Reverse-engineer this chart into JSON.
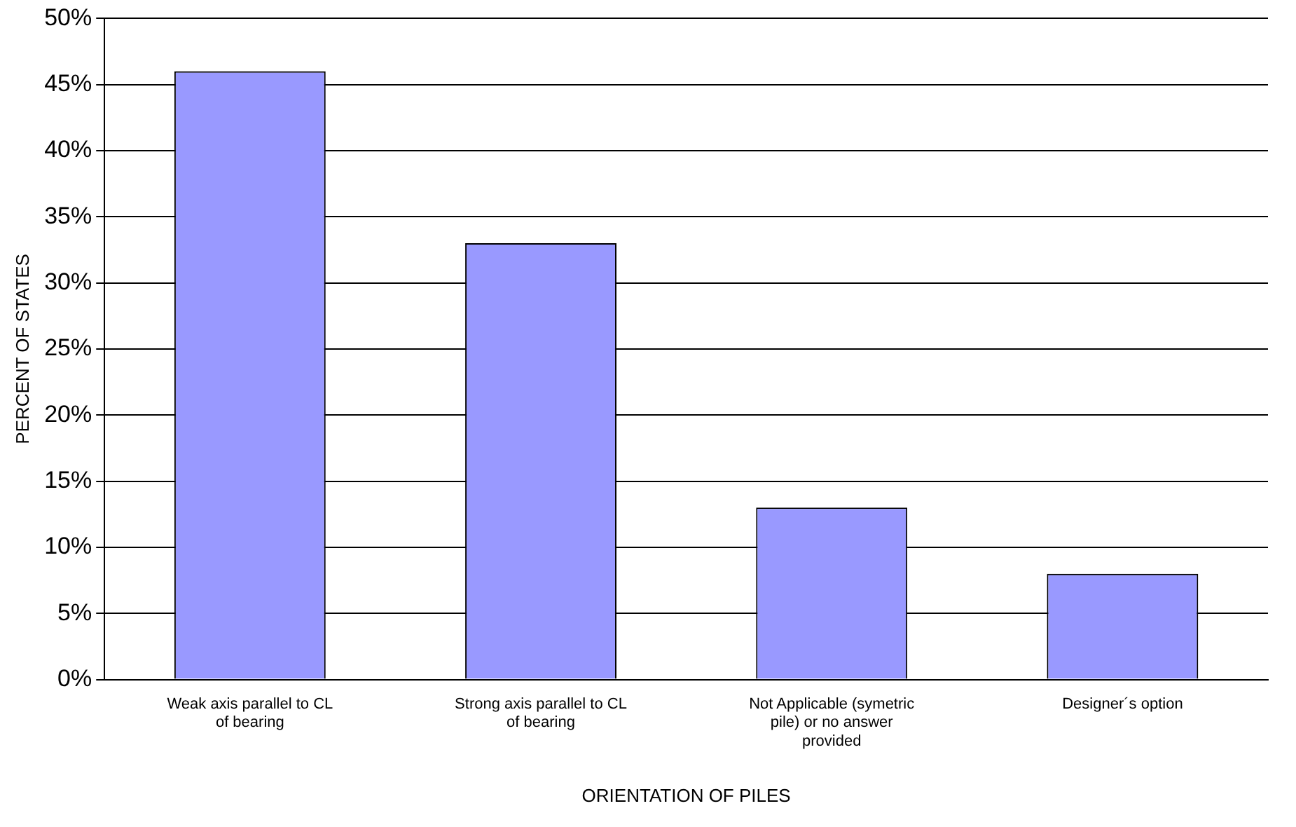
{
  "chart_data": {
    "type": "bar",
    "xlabel": "ORIENTATION OF PILES",
    "ylabel": "PERCENT OF STATES",
    "categories": [
      "Weak axis parallel to CL of bearing",
      "Strong axis parallel to CL of bearing",
      "Not Applicable (symetric pile) or no answer provided",
      "Designer´s option"
    ],
    "values": [
      46,
      33,
      13,
      8
    ],
    "color": "#9999ff",
    "ylim": [
      0,
      50
    ],
    "yticks": [
      {
        "value": 0,
        "label": "0%"
      },
      {
        "value": 5,
        "label": "5%"
      },
      {
        "value": 10,
        "label": "10%"
      },
      {
        "value": 15,
        "label": "15%"
      },
      {
        "value": 20,
        "label": "20%"
      },
      {
        "value": 25,
        "label": "25%"
      },
      {
        "value": 30,
        "label": "30%"
      },
      {
        "value": 35,
        "label": "35%"
      },
      {
        "value": 40,
        "label": "40%"
      },
      {
        "value": 45,
        "label": "45%"
      },
      {
        "value": 50,
        "label": "50%"
      }
    ],
    "grid": "y"
  }
}
